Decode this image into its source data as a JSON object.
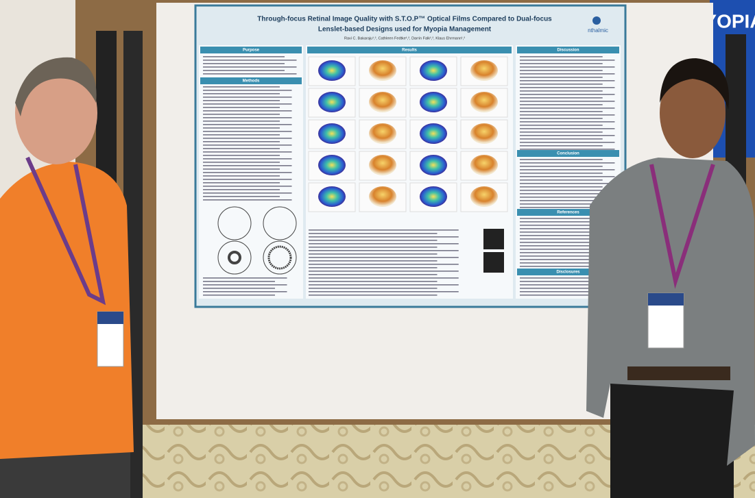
{
  "background_banner": "YOPIA",
  "poster": {
    "title_lines": [
      "Through-focus Retinal Image Quality with S.T.O.P™ Optical Films Compared to Dual-focus",
      "Lenslet-based Designs used for Myopia Management"
    ],
    "authors": "Ravi C. Bakaraju¹,², Cathleen Fedtke¹,², Darrin Falk¹,², Klaus Ehrmann¹,²",
    "logo": "nthalmic",
    "sections": [
      "Purpose",
      "Methods",
      "Results",
      "Discussion",
      "Conclusion",
      "References",
      "Disclosures"
    ]
  }
}
